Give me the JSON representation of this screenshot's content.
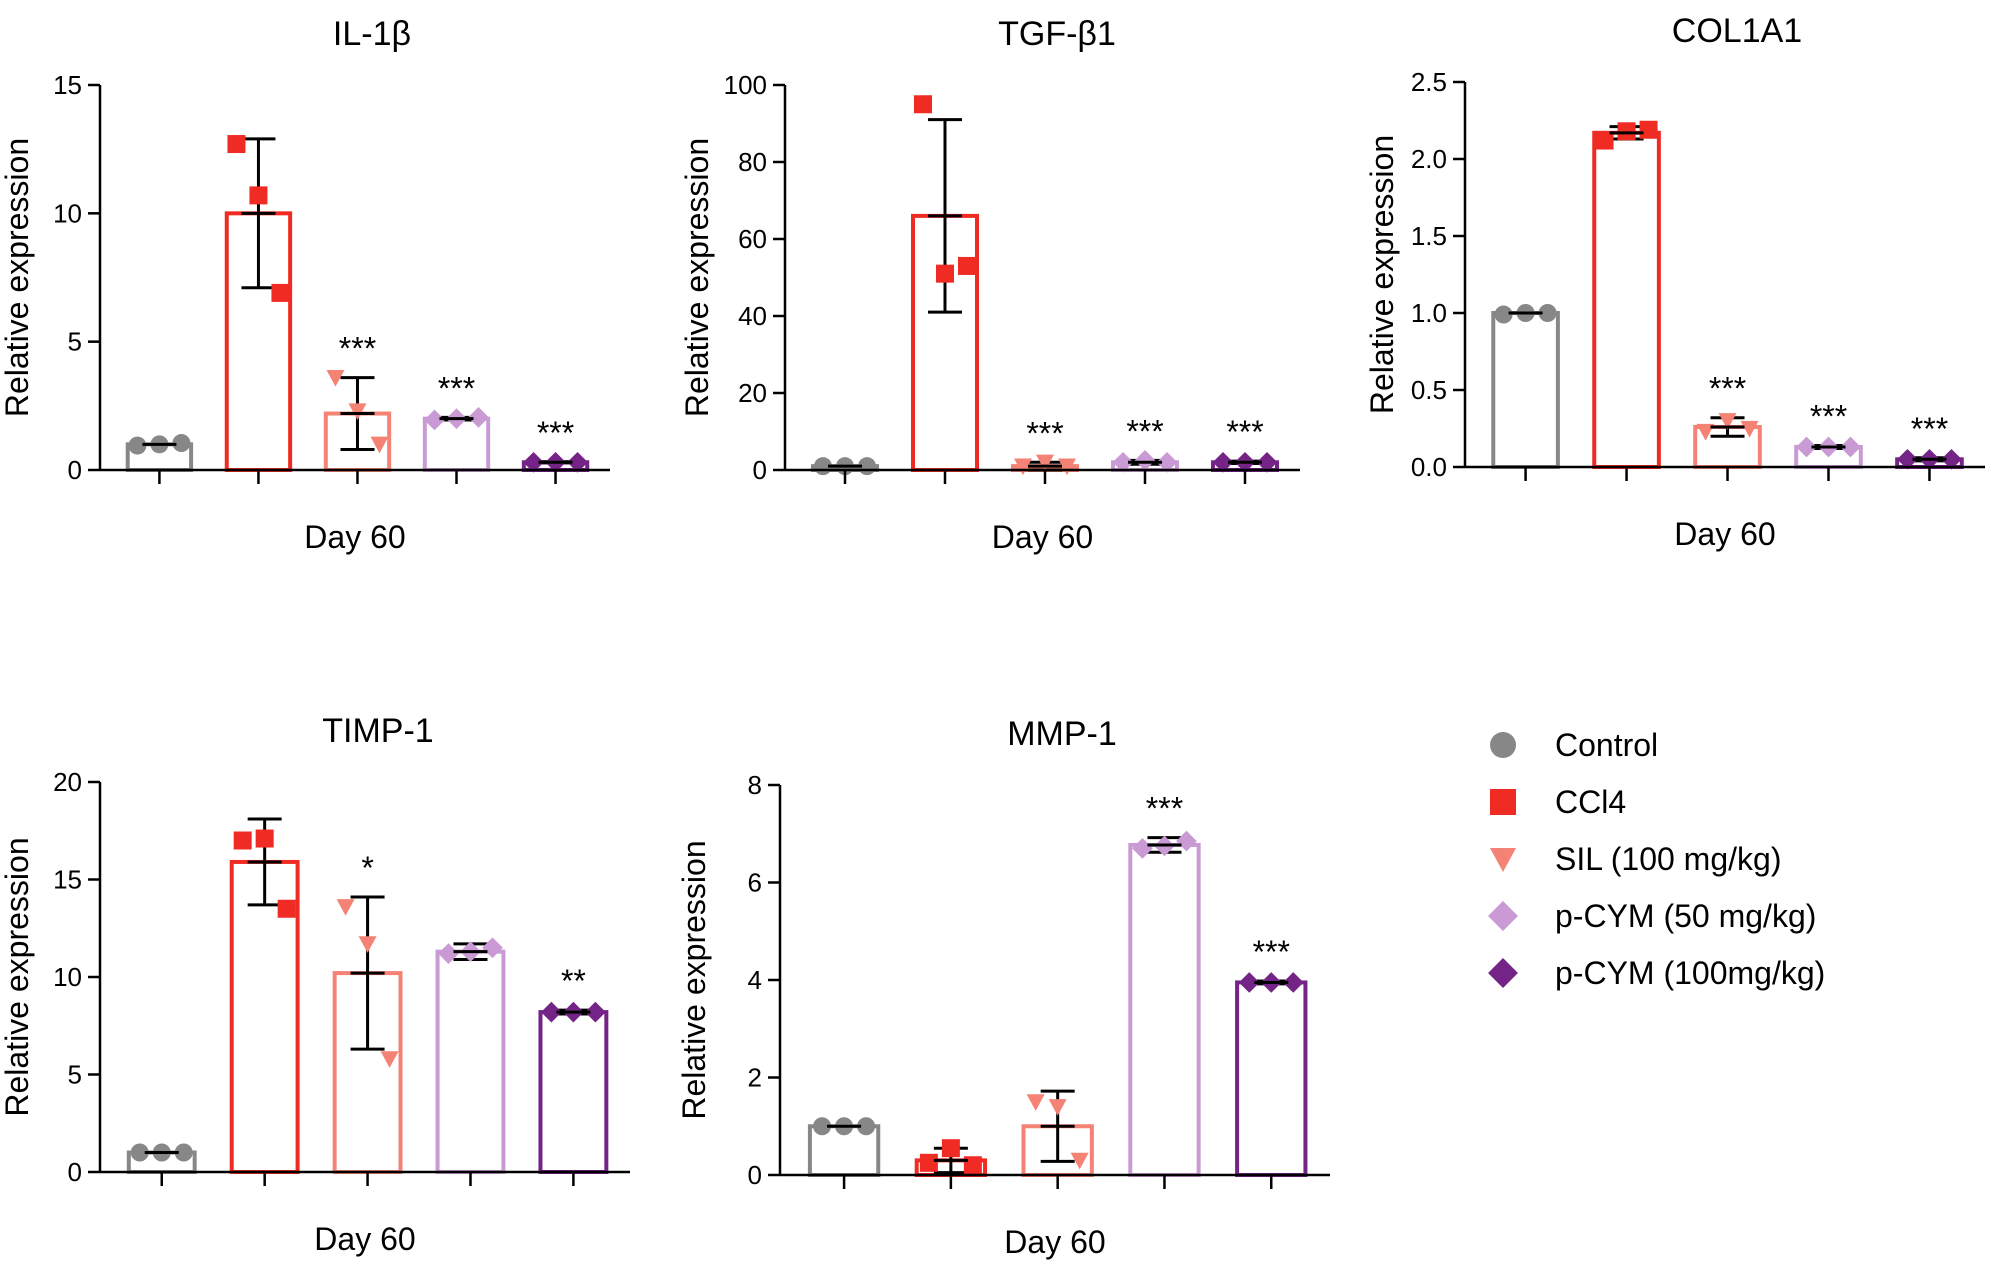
{
  "legend": [
    {
      "key": "control",
      "label": "Control",
      "color": "#878787",
      "marker": "circle"
    },
    {
      "key": "ccl4",
      "label": "CCl4",
      "color": "#ef2b24",
      "marker": "square"
    },
    {
      "key": "sil",
      "label": "SIL (100 mg/kg)",
      "color": "#f48275",
      "marker": "triangle"
    },
    {
      "key": "pcym50",
      "label": "p-CYM (50 mg/kg)",
      "color": "#c99ad3",
      "marker": "diamond"
    },
    {
      "key": "pcym100",
      "label": "p-CYM (100mg/kg)",
      "color": "#732486",
      "marker": "diamond"
    }
  ],
  "chart_data": [
    {
      "type": "bar",
      "title": "IL-1β",
      "xlabel": "Day 60",
      "ylabel": "Relative expression",
      "ylim": [
        0,
        15
      ],
      "yticks": [
        0,
        5,
        10,
        15
      ],
      "groups": [
        {
          "key": "control",
          "mean": 1.0,
          "sd": 0.0,
          "points": [
            0.95,
            1.0,
            1.05
          ],
          "sig": ""
        },
        {
          "key": "ccl4",
          "mean": 10.0,
          "sd": 2.9,
          "points": [
            12.7,
            10.7,
            6.9
          ],
          "sig": ""
        },
        {
          "key": "sil",
          "mean": 2.2,
          "sd": 1.4,
          "points": [
            3.6,
            2.3,
            1.0
          ],
          "sig": "***"
        },
        {
          "key": "pcym50",
          "mean": 2.0,
          "sd": 0.05,
          "points": [
            1.95,
            2.0,
            2.05
          ],
          "sig": "***"
        },
        {
          "key": "pcym100",
          "mean": 0.3,
          "sd": 0.02,
          "points": [
            0.3,
            0.3,
            0.3
          ],
          "sig": "***"
        }
      ]
    },
    {
      "type": "bar",
      "title": "TGF-β1",
      "xlabel": "Day 60",
      "ylabel": "Relative expression",
      "ylim": [
        0,
        100
      ],
      "yticks": [
        0,
        20,
        40,
        60,
        80,
        100
      ],
      "groups": [
        {
          "key": "control",
          "mean": 1.0,
          "sd": 0.0,
          "points": [
            1.0,
            1.0,
            1.0
          ],
          "sig": ""
        },
        {
          "key": "ccl4",
          "mean": 66,
          "sd": 25,
          "points": [
            95,
            51,
            53
          ],
          "sig": ""
        },
        {
          "key": "sil",
          "mean": 1.0,
          "sd": 1.0,
          "points": [
            1.0,
            2.0,
            1.0
          ],
          "sig": "***"
        },
        {
          "key": "pcym50",
          "mean": 2.0,
          "sd": 0.5,
          "points": [
            2.0,
            2.5,
            2.0
          ],
          "sig": "***"
        },
        {
          "key": "pcym100",
          "mean": 2.0,
          "sd": 0.3,
          "points": [
            2.0,
            2.0,
            2.0
          ],
          "sig": "***"
        }
      ]
    },
    {
      "type": "bar",
      "title": "COL1A1",
      "xlabel": "Day 60",
      "ylabel": "Relative expression",
      "ylim": [
        0,
        2.5
      ],
      "yticks": [
        "0.0",
        "0.5",
        "1.0",
        "1.5",
        "2.0",
        "2.5"
      ],
      "groups": [
        {
          "key": "control",
          "mean": 1.0,
          "sd": 0.0,
          "points": [
            0.99,
            1.0,
            1.0
          ],
          "sig": ""
        },
        {
          "key": "ccl4",
          "mean": 2.17,
          "sd": 0.04,
          "points": [
            2.12,
            2.18,
            2.19
          ],
          "sig": ""
        },
        {
          "key": "sil",
          "mean": 0.26,
          "sd": 0.06,
          "points": [
            0.23,
            0.3,
            0.25
          ],
          "sig": "***"
        },
        {
          "key": "pcym50",
          "mean": 0.13,
          "sd": 0.01,
          "points": [
            0.13,
            0.13,
            0.13
          ],
          "sig": "***"
        },
        {
          "key": "pcym100",
          "mean": 0.05,
          "sd": 0.01,
          "points": [
            0.05,
            0.05,
            0.05
          ],
          "sig": "***"
        }
      ]
    },
    {
      "type": "bar",
      "title": "TIMP-1",
      "xlabel": "Day 60",
      "ylabel": "Relative expression",
      "ylim": [
        0,
        20
      ],
      "yticks": [
        0,
        5,
        10,
        15,
        20
      ],
      "groups": [
        {
          "key": "control",
          "mean": 1.0,
          "sd": 0.0,
          "points": [
            1.0,
            1.0,
            1.0
          ],
          "sig": ""
        },
        {
          "key": "ccl4",
          "mean": 15.9,
          "sd": 2.2,
          "points": [
            17.0,
            17.1,
            13.5
          ],
          "sig": ""
        },
        {
          "key": "sil",
          "mean": 10.2,
          "sd": 3.9,
          "points": [
            13.6,
            11.7,
            5.8
          ],
          "sig": "*"
        },
        {
          "key": "pcym50",
          "mean": 11.3,
          "sd": 0.4,
          "points": [
            11.2,
            11.3,
            11.5
          ],
          "sig": ""
        },
        {
          "key": "pcym100",
          "mean": 8.2,
          "sd": 0.1,
          "points": [
            8.2,
            8.2,
            8.2
          ],
          "sig": "**"
        }
      ]
    },
    {
      "type": "bar",
      "title": "MMP-1",
      "xlabel": "Day 60",
      "ylabel": "Relative expression",
      "ylim": [
        0,
        8
      ],
      "yticks": [
        0,
        2,
        4,
        6,
        8
      ],
      "groups": [
        {
          "key": "control",
          "mean": 1.0,
          "sd": 0.0,
          "points": [
            1.0,
            1.0,
            1.0
          ],
          "sig": ""
        },
        {
          "key": "ccl4",
          "mean": 0.3,
          "sd": 0.25,
          "points": [
            0.25,
            0.55,
            0.2
          ],
          "sig": ""
        },
        {
          "key": "sil",
          "mean": 1.0,
          "sd": 0.72,
          "points": [
            1.5,
            1.4,
            0.3
          ],
          "sig": ""
        },
        {
          "key": "pcym50",
          "mean": 6.77,
          "sd": 0.15,
          "points": [
            6.7,
            6.75,
            6.85
          ],
          "sig": "***"
        },
        {
          "key": "pcym100",
          "mean": 3.95,
          "sd": 0.03,
          "points": [
            3.95,
            3.95,
            3.95
          ],
          "sig": "***"
        }
      ]
    }
  ]
}
